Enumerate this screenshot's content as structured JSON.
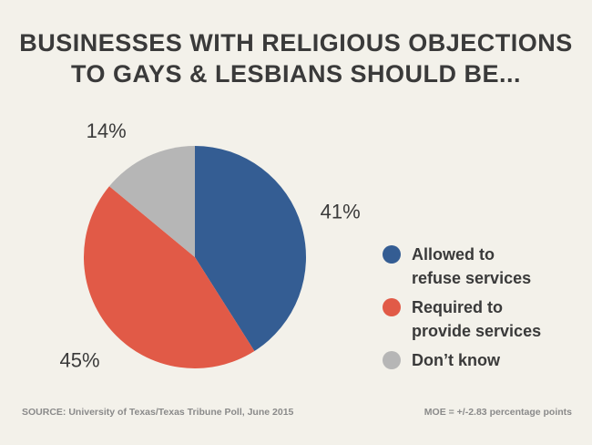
{
  "title_lines": [
    "BUSINESSES WITH RELIGIOUS OBJECTIONS",
    "TO GAYS & LESBIANS SHOULD BE..."
  ],
  "chart_data": {
    "type": "pie",
    "title": "BUSINESSES WITH RELIGIOUS OBJECTIONS TO GAYS & LESBIANS SHOULD BE...",
    "slices": [
      {
        "label": "Allowed to refuse services",
        "legend": "Allowed to\nrefuse services",
        "value": 41,
        "display": "41%",
        "color": "#345d93"
      },
      {
        "label": "Required to provide services",
        "legend": "Required to\nprovide services",
        "value": 45,
        "display": "45%",
        "color": "#e15a47"
      },
      {
        "label": "Don't know",
        "legend": "Don’t know",
        "value": 14,
        "display": "14%",
        "color": "#b6b6b6"
      }
    ],
    "legend_position": "right"
  },
  "footer": {
    "source": "SOURCE: University of Texas/Texas Tribune Poll, June 2015",
    "moe": "MOE = +/-2.83 percentage points"
  }
}
